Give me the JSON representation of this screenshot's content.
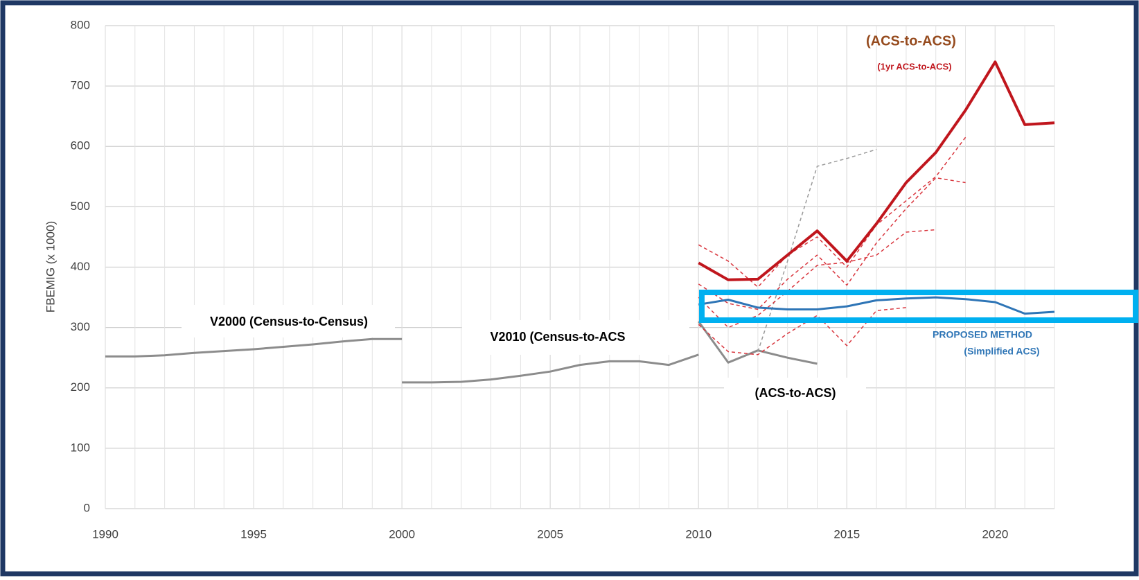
{
  "chart_data": {
    "type": "line",
    "y_label": "FBEMIG  (x 1000)",
    "x": [
      1990,
      1991,
      1992,
      1993,
      1994,
      1995,
      1996,
      1997,
      1998,
      1999,
      2000,
      2001,
      2002,
      2003,
      2004,
      2005,
      2006,
      2007,
      2008,
      2009,
      2010,
      2011,
      2012,
      2013,
      2014,
      2015,
      2016,
      2017,
      2018,
      2019,
      2020,
      2021,
      2022
    ],
    "xlim": [
      1990,
      2022
    ],
    "xticks": [
      1990,
      1995,
      2000,
      2005,
      2010,
      2015,
      2020
    ],
    "ylim": [
      0,
      800
    ],
    "yticks": [
      0,
      100,
      200,
      300,
      400,
      500,
      600,
      700,
      800
    ],
    "grid": true,
    "series": [
      {
        "color": "#8c8c8c",
        "width": 3,
        "dash": false,
        "values": [
          252,
          252,
          254,
          258,
          261,
          264,
          268,
          272,
          277,
          281,
          281,
          null,
          null,
          null,
          null,
          null,
          null,
          null,
          null,
          null,
          null,
          null,
          null,
          null,
          null,
          null,
          null,
          null,
          null,
          null,
          null,
          null,
          null
        ]
      },
      {
        "color": "#8c8c8c",
        "width": 3,
        "dash": false,
        "values": [
          null,
          null,
          null,
          null,
          null,
          null,
          null,
          null,
          null,
          null,
          209,
          209,
          210,
          214,
          220,
          227,
          238,
          244,
          244,
          238,
          255,
          null,
          null,
          null,
          null,
          null,
          null,
          null,
          null,
          null,
          null,
          null,
          null
        ]
      },
      {
        "color": "#8c8c8c",
        "width": 3,
        "dash": false,
        "values": [
          null,
          null,
          null,
          null,
          null,
          null,
          null,
          null,
          null,
          null,
          null,
          null,
          null,
          null,
          null,
          null,
          null,
          null,
          null,
          null,
          310,
          242,
          262,
          250,
          240,
          null,
          null,
          null,
          null,
          null,
          null,
          null,
          null
        ]
      },
      {
        "color": "#9a9a9a",
        "width": 1.5,
        "dash": true,
        "values": [
          null,
          null,
          null,
          null,
          null,
          null,
          null,
          null,
          null,
          null,
          null,
          null,
          null,
          null,
          null,
          null,
          null,
          null,
          null,
          null,
          null,
          null,
          260,
          410,
          567,
          580,
          595,
          null,
          null,
          null,
          null,
          null,
          null
        ]
      },
      {
        "color": "#d9363e",
        "width": 1.5,
        "dash": true,
        "values": [
          null,
          null,
          null,
          null,
          null,
          null,
          null,
          null,
          null,
          null,
          null,
          null,
          null,
          null,
          null,
          null,
          null,
          null,
          null,
          null,
          437,
          410,
          367,
          420,
          450,
          400,
          470,
          510,
          550,
          615,
          null,
          null,
          null
        ]
      },
      {
        "color": "#d9363e",
        "width": 1.5,
        "dash": true,
        "values": [
          null,
          null,
          null,
          null,
          null,
          null,
          null,
          null,
          null,
          null,
          null,
          null,
          null,
          null,
          null,
          null,
          null,
          null,
          null,
          null,
          372,
          340,
          330,
          380,
          420,
          370,
          440,
          497,
          548,
          540,
          null,
          null,
          null
        ]
      },
      {
        "color": "#d9363e",
        "width": 1.5,
        "dash": true,
        "values": [
          null,
          null,
          null,
          null,
          null,
          null,
          null,
          null,
          null,
          null,
          null,
          null,
          null,
          null,
          null,
          null,
          null,
          null,
          null,
          null,
          350,
          300,
          320,
          360,
          403,
          408,
          420,
          458,
          462,
          null,
          null,
          null,
          null
        ]
      },
      {
        "color": "#d9363e",
        "width": 1.5,
        "dash": true,
        "values": [
          null,
          null,
          null,
          null,
          null,
          null,
          null,
          null,
          null,
          null,
          null,
          null,
          null,
          null,
          null,
          null,
          null,
          null,
          null,
          null,
          305,
          260,
          255,
          290,
          320,
          270,
          328,
          333,
          null,
          null,
          null,
          null,
          null
        ]
      },
      {
        "color": "#c0161d",
        "width": 4,
        "dash": false,
        "values": [
          null,
          null,
          null,
          null,
          null,
          null,
          null,
          null,
          null,
          null,
          null,
          null,
          null,
          null,
          null,
          null,
          null,
          null,
          null,
          null,
          407,
          379,
          380,
          420,
          460,
          410,
          472,
          540,
          590,
          660,
          740,
          636,
          639
        ]
      },
      {
        "color": "#2e75b6",
        "width": 3,
        "dash": false,
        "values": [
          null,
          null,
          null,
          null,
          null,
          null,
          null,
          null,
          null,
          null,
          null,
          null,
          null,
          null,
          null,
          null,
          null,
          null,
          null,
          null,
          338,
          346,
          333,
          330,
          330,
          335,
          345,
          348,
          350,
          347,
          342,
          323,
          326
        ]
      }
    ],
    "annotations": [
      {
        "text": "V2000 (Census-to-Census)",
        "color": "#000000"
      },
      {
        "text": "V2010 (Census-to-ACS",
        "color": "#000000"
      },
      {
        "text": "(ACS-to-ACS)",
        "color": "#000000"
      },
      {
        "text": "(ACS-to-ACS)",
        "color": "#964B1E"
      },
      {
        "text": "(1yr ACS-to-ACS)",
        "color": "#c0161d"
      },
      {
        "text": "PROPOSED METHOD",
        "color": "#2e75b6"
      },
      {
        "text": "(Simplified ACS)",
        "color": "#2e75b6"
      }
    ]
  }
}
